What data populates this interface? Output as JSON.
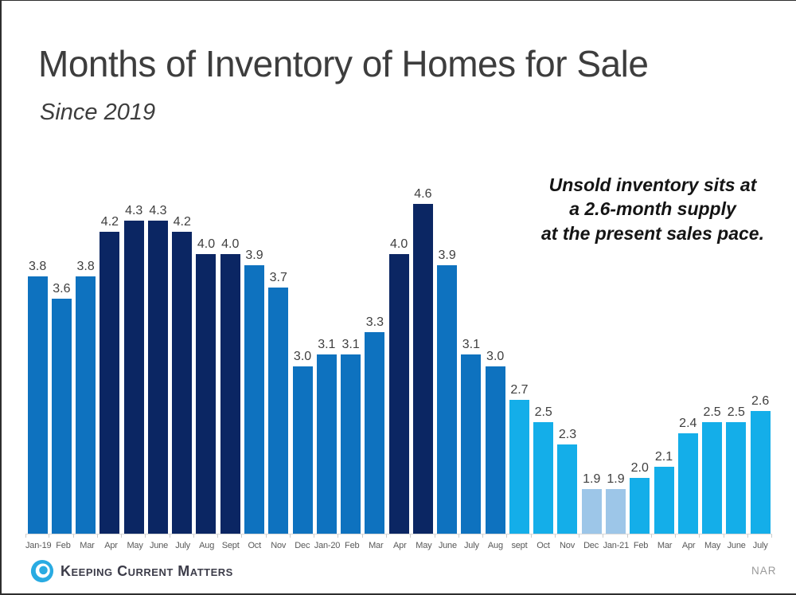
{
  "header": {
    "title": "Months of Inventory of Homes for Sale",
    "subtitle": "Since 2019"
  },
  "annotation": {
    "lines": [
      "Unsold inventory sits at",
      "a 2.6-month supply",
      "at the present sales pace."
    ]
  },
  "footer": {
    "brand": "Keeping Current Matters",
    "source": "NAR"
  },
  "colors": {
    "navy": "#0B2663",
    "blue": "#0E72BF",
    "cyan": "#14AEE9",
    "pale": "#9DC6E8",
    "logo_cyan": "#29ABE2",
    "title_text": "#3D3D3D",
    "axis_text": "#595959",
    "value_text": "#3F3F3F"
  },
  "chart_data": {
    "type": "bar",
    "title": "Months of Inventory of Homes for Sale",
    "subtitle": "Since 2019",
    "categories": [
      "Jan-19",
      "Feb",
      "Mar",
      "Apr",
      "May",
      "June",
      "July",
      "Aug",
      "Sept",
      "Oct",
      "Nov",
      "Dec",
      "Jan-20",
      "Feb",
      "Mar",
      "Apr",
      "May",
      "June",
      "July",
      "Aug",
      "sept",
      "Oct",
      "Nov",
      "Dec",
      "Jan-21",
      "Feb",
      "Mar",
      "Apr",
      "May",
      "June",
      "July"
    ],
    "values": [
      3.8,
      3.6,
      3.8,
      4.2,
      4.3,
      4.3,
      4.2,
      4.0,
      4.0,
      3.9,
      3.7,
      3.0,
      3.1,
      3.1,
      3.3,
      4.0,
      4.6,
      3.9,
      3.1,
      3.0,
      2.7,
      2.5,
      2.3,
      1.9,
      1.9,
      2.0,
      2.1,
      2.4,
      2.5,
      2.5,
      2.6
    ],
    "bar_colors": [
      "blue",
      "blue",
      "blue",
      "navy",
      "navy",
      "navy",
      "navy",
      "navy",
      "navy",
      "blue",
      "blue",
      "blue",
      "blue",
      "blue",
      "blue",
      "navy",
      "navy",
      "blue",
      "blue",
      "blue",
      "cyan",
      "cyan",
      "cyan",
      "pale",
      "pale",
      "cyan",
      "cyan",
      "cyan",
      "cyan",
      "cyan",
      "cyan"
    ],
    "ylim": [
      1.5,
      4.6
    ],
    "grid": false,
    "legend": false,
    "value_label_format": "one-decimal",
    "xlabel": "",
    "ylabel": ""
  }
}
